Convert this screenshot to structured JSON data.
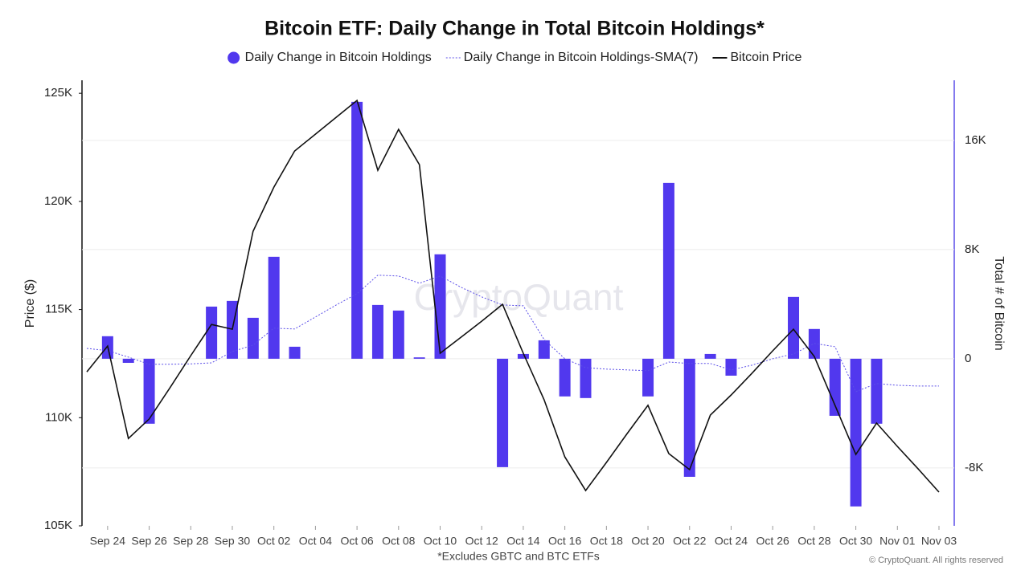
{
  "chart_data": {
    "type": "combo",
    "title": "Bitcoin ETF: Daily Change in Total Bitcoin Holdings*",
    "footnote": "*Excludes GBTC and BTC ETFs",
    "credit": "© CryptoQuant. All rights reserved",
    "watermark": "CryptoQuant",
    "y_label": "Price ($)",
    "y2_label": "Total # of Bitcoin",
    "categories": [
      null,
      "Sep 24",
      null,
      "Sep 26",
      null,
      "Sep 28",
      null,
      "Sep 30",
      null,
      "Oct 02",
      null,
      "Oct 04",
      null,
      "Oct 06",
      null,
      "Oct 08",
      null,
      "Oct 10",
      null,
      "Oct 12",
      null,
      "Oct 14",
      null,
      "Oct 16",
      null,
      "Oct 18",
      null,
      "Oct 20",
      null,
      "Oct 22",
      null,
      "Oct 24",
      null,
      "Oct 26",
      null,
      "Oct 28",
      null,
      "Oct 30",
      null,
      "Nov 01",
      null,
      "Nov 03"
    ],
    "ylim": [
      105000,
      125600
    ],
    "yticks": [
      {
        "value": 105000,
        "label": "105K"
      },
      {
        "value": 110000,
        "label": "110K"
      },
      {
        "value": 115000,
        "label": "115K"
      },
      {
        "value": 120000,
        "label": "120K"
      },
      {
        "value": 125000,
        "label": "125K"
      }
    ],
    "y2lim": [
      -12240,
      20400
    ],
    "y2ticks": [
      {
        "value": -8000,
        "label": "-8K"
      },
      0,
      {
        "value": 8000,
        "label": "8K"
      },
      {
        "value": 16000,
        "label": "16K"
      }
    ],
    "grid": true,
    "series": [
      {
        "name": "Daily Change in Bitcoin Holdings",
        "type": "bar",
        "axis": "y2",
        "color": "#5138ee",
        "values": [
          null,
          1650,
          -300,
          -4760,
          null,
          null,
          3820,
          4235,
          3000,
          7470,
          880,
          null,
          null,
          18820,
          3940,
          3530,
          100,
          7650,
          null,
          null,
          -7940,
          350,
          1350,
          -2760,
          -2880,
          null,
          null,
          -2760,
          12880,
          -8650,
          350,
          -1240,
          null,
          null,
          4530,
          2180,
          -4180,
          -10820,
          -4760,
          null,
          null,
          null
        ]
      },
      {
        "name": "Daily Change in Bitcoin Holdings-SMA(7)",
        "type": "line",
        "axis": "y2",
        "color": "#5b4ee8",
        "line_style": "dotted",
        "values": [
          760,
          590,
          120,
          -410,
          -400,
          -380,
          -300,
          530,
          1000,
          2240,
          2180,
          3060,
          3940,
          4760,
          6120,
          6060,
          5530,
          6060,
          5240,
          4530,
          3940,
          3880,
          1410,
          0,
          -650,
          -760,
          -820,
          -880,
          -240,
          -350,
          -350,
          -820,
          -470,
          0,
          350,
          1120,
          880,
          -2410,
          -1820,
          -1940,
          -2000,
          -2000
        ]
      },
      {
        "name": "Bitcoin Price",
        "type": "line",
        "axis": "y",
        "color": "#111111",
        "line_style": "solid",
        "values": [
          112120,
          113310,
          109040,
          109940,
          111380,
          112870,
          114310,
          114090,
          118620,
          120660,
          122330,
          123110,
          123890,
          124670,
          121440,
          123330,
          121700,
          112980,
          113720,
          114460,
          115240,
          112980,
          110830,
          108190,
          106630,
          107930,
          109270,
          110570,
          108340,
          107600,
          110120,
          111050,
          112050,
          113090,
          114090,
          112830,
          110570,
          108300,
          109750,
          108670,
          107630,
          106560
        ]
      }
    ]
  }
}
